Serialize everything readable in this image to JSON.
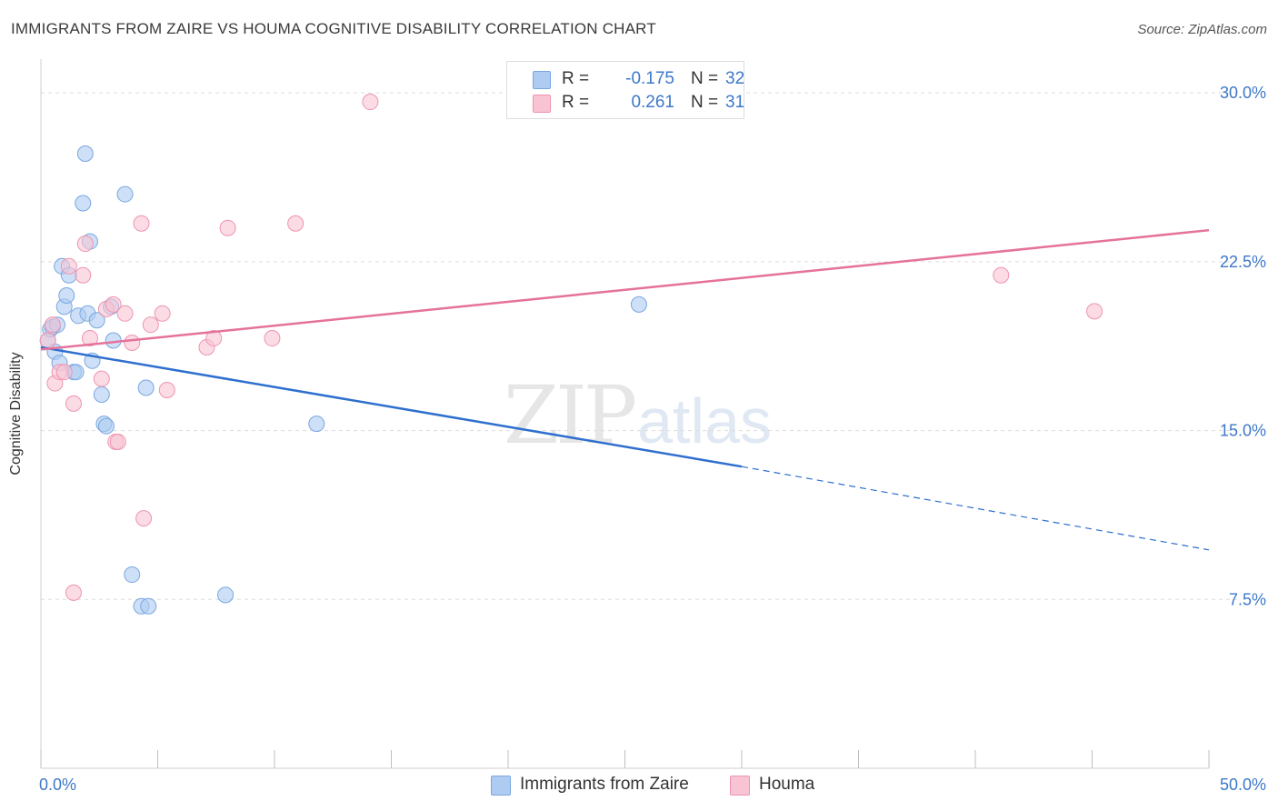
{
  "header": {
    "title": "IMMIGRANTS FROM ZAIRE VS HOUMA COGNITIVE DISABILITY CORRELATION CHART",
    "source": "Source: ZipAtlas.com"
  },
  "watermark": {
    "zip": "ZIP",
    "atlas": "atlas"
  },
  "legend_top": [
    {
      "r_label": "R =",
      "r_value": "-0.175",
      "n_label": "N =",
      "n_value": "32",
      "color": "#aecbf1",
      "border": "#7aa7e0"
    },
    {
      "r_label": "R =",
      "r_value": "0.261",
      "n_label": "N =",
      "n_value": "31",
      "color": "#f8c4d4",
      "border": "#ee94b0"
    }
  ],
  "legend_bottom": [
    {
      "label": "Immigrants from Zaire",
      "color": "#aecbf1",
      "border": "#7aa7e0"
    },
    {
      "label": "Houma",
      "color": "#f8c4d4",
      "border": "#ee94b0"
    }
  ],
  "chart_data": {
    "type": "scatter",
    "title": "IMMIGRANTS FROM ZAIRE VS HOUMA COGNITIVE DISABILITY CORRELATION CHART",
    "xlabel": "",
    "ylabel": "Cognitive Disability",
    "xlim": [
      0,
      50
    ],
    "ylim": [
      0,
      31.5
    ],
    "x_tick_labels": [
      "0.0%",
      "50.0%"
    ],
    "y_ticks": [
      7.5,
      15.0,
      22.5,
      30.0
    ],
    "y_tick_labels": [
      "7.5%",
      "15.0%",
      "22.5%",
      "30.0%"
    ],
    "grid": true,
    "legend_position": "top-center",
    "series": [
      {
        "name": "Immigrants from Zaire",
        "color": "#7aa7e0",
        "fill": "#aecbf1",
        "line_color": "#2f6fce",
        "trend": {
          "x": [
            0,
            30
          ],
          "y": [
            18.7,
            13.4
          ],
          "dashed_to": [
            50,
            9.7
          ]
        },
        "points": [
          [
            0.3,
            19.0
          ],
          [
            0.4,
            19.5
          ],
          [
            0.5,
            19.6
          ],
          [
            0.6,
            18.5
          ],
          [
            0.7,
            19.7
          ],
          [
            0.8,
            18.0
          ],
          [
            0.9,
            22.3
          ],
          [
            1.0,
            20.5
          ],
          [
            1.1,
            21.0
          ],
          [
            1.2,
            21.9
          ],
          [
            1.4,
            17.6
          ],
          [
            1.5,
            17.6
          ],
          [
            1.6,
            20.1
          ],
          [
            1.8,
            25.1
          ],
          [
            1.9,
            27.3
          ],
          [
            2.0,
            20.2
          ],
          [
            2.1,
            23.4
          ],
          [
            2.2,
            18.1
          ],
          [
            2.4,
            19.9
          ],
          [
            2.6,
            16.6
          ],
          [
            2.7,
            15.3
          ],
          [
            2.8,
            15.2
          ],
          [
            3.0,
            20.5
          ],
          [
            3.1,
            19.0
          ],
          [
            3.6,
            25.5
          ],
          [
            3.9,
            8.6
          ],
          [
            4.3,
            7.2
          ],
          [
            4.6,
            7.2
          ],
          [
            4.5,
            16.9
          ],
          [
            7.9,
            7.7
          ],
          [
            11.8,
            15.3
          ],
          [
            25.6,
            20.6
          ]
        ]
      },
      {
        "name": "Houma",
        "color": "#ee94b0",
        "fill": "#f8c4d4",
        "line_color": "#e5729a",
        "trend": {
          "x": [
            0,
            50
          ],
          "y": [
            18.6,
            23.9
          ]
        },
        "points": [
          [
            0.3,
            19.0
          ],
          [
            0.5,
            19.7
          ],
          [
            0.6,
            17.1
          ],
          [
            0.8,
            17.6
          ],
          [
            1.0,
            17.6
          ],
          [
            1.2,
            22.3
          ],
          [
            1.4,
            16.2
          ],
          [
            1.4,
            7.8
          ],
          [
            1.8,
            21.9
          ],
          [
            1.9,
            23.3
          ],
          [
            2.1,
            19.1
          ],
          [
            2.6,
            17.3
          ],
          [
            2.8,
            20.4
          ],
          [
            3.1,
            20.6
          ],
          [
            3.2,
            14.5
          ],
          [
            3.3,
            14.5
          ],
          [
            3.6,
            20.2
          ],
          [
            3.9,
            18.9
          ],
          [
            4.3,
            24.2
          ],
          [
            4.4,
            11.1
          ],
          [
            4.7,
            19.7
          ],
          [
            5.2,
            20.2
          ],
          [
            5.4,
            16.8
          ],
          [
            7.1,
            18.7
          ],
          [
            7.4,
            19.1
          ],
          [
            8.0,
            24.0
          ],
          [
            9.9,
            19.1
          ],
          [
            10.9,
            24.2
          ],
          [
            14.1,
            29.6
          ],
          [
            41.1,
            21.9
          ],
          [
            45.1,
            20.3
          ]
        ]
      }
    ]
  }
}
